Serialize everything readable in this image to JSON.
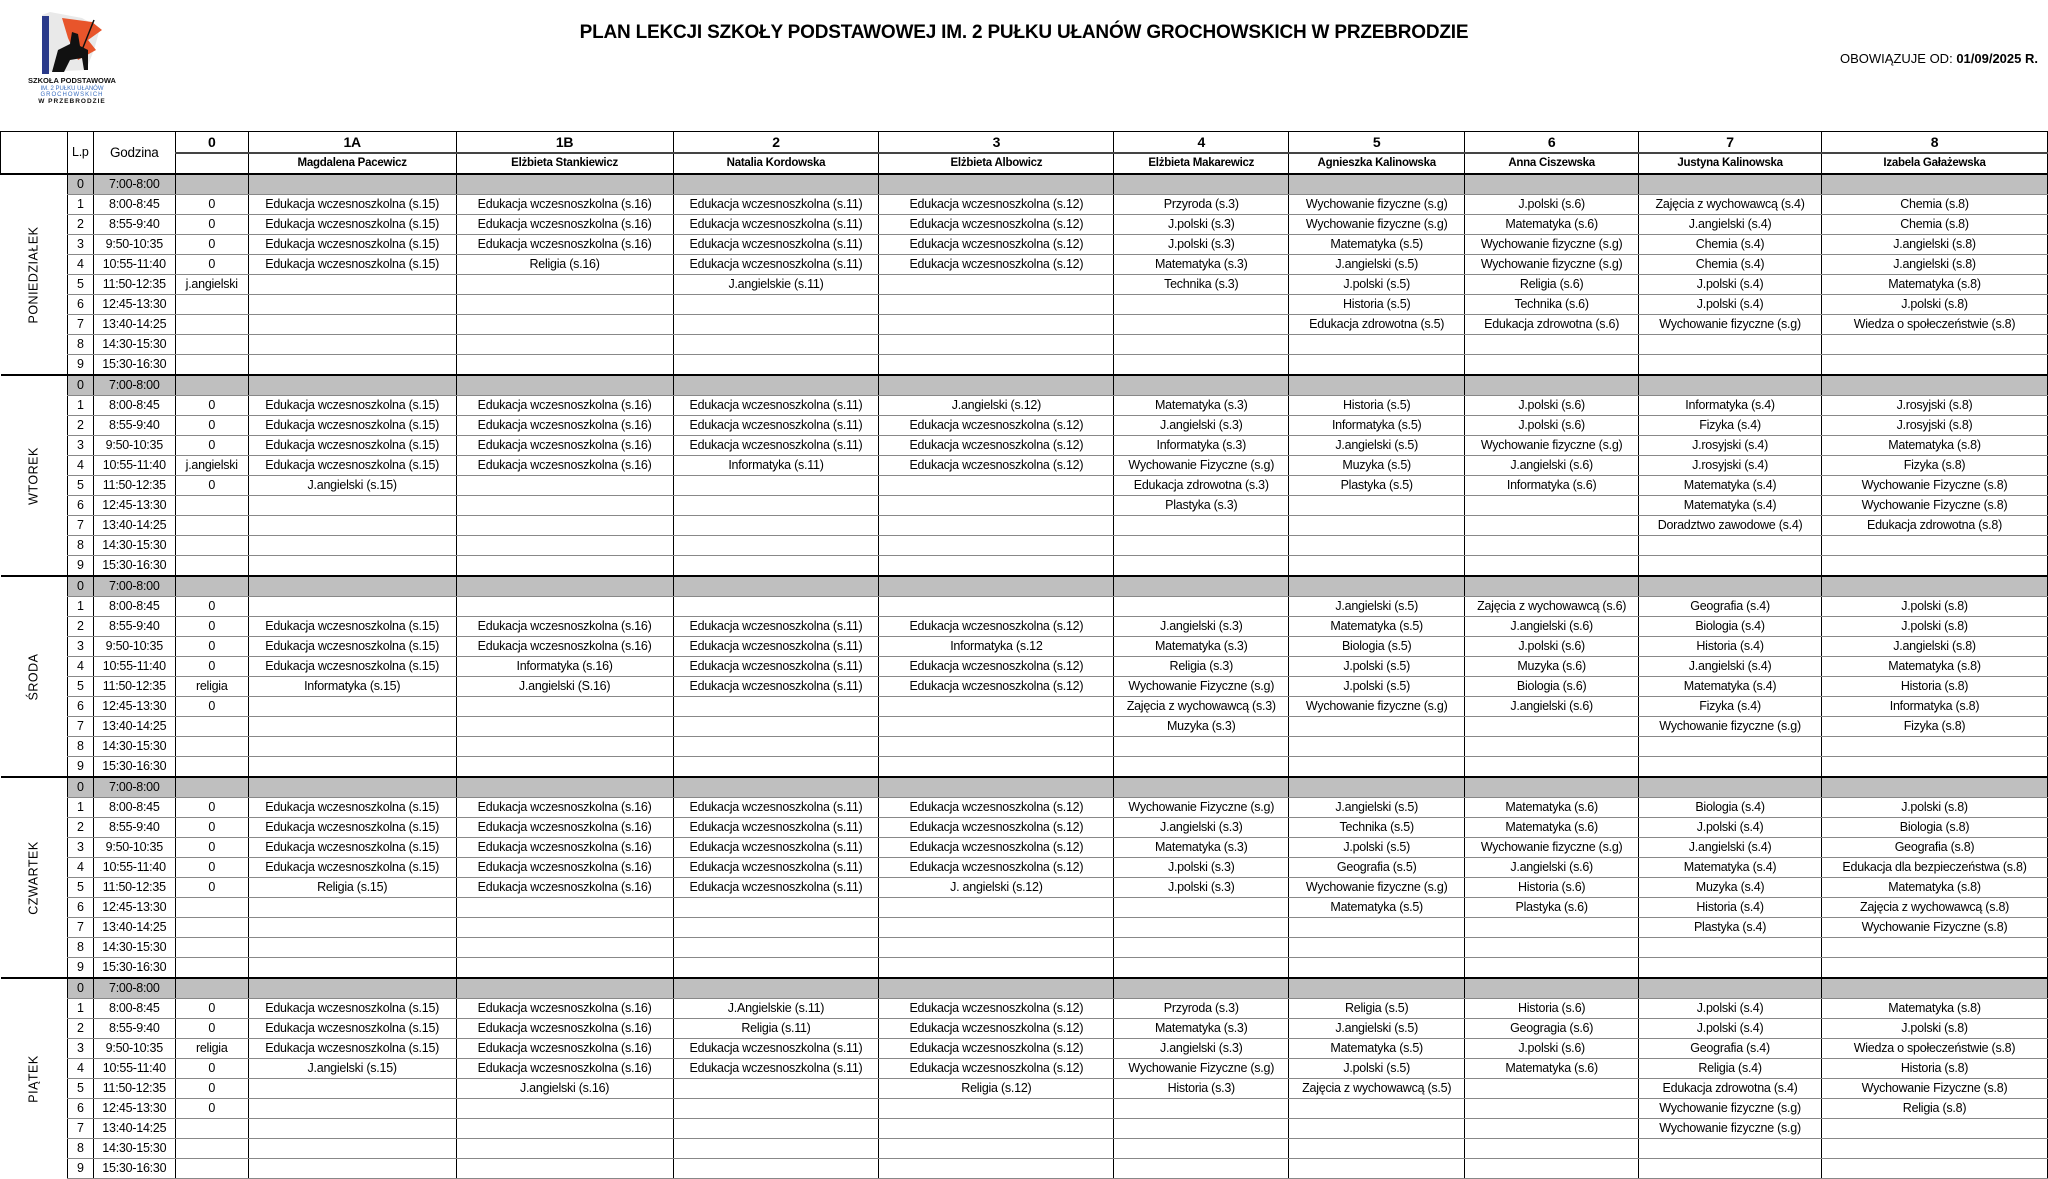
{
  "logo": {
    "text": [
      "SZKOŁA PODSTAWOWA",
      "IM. 2 PUŁKU UŁANÓW",
      "GROCHOWSKICH",
      "W PRZEBRODZIE"
    ]
  },
  "title": "PLAN LEKCJI SZKOŁY PODSTAWOWEJ IM. 2 PUŁKU UŁANÓW GROCHOWSKICH W PRZEBRODZIE",
  "valid_label": "OBOWIĄZUJE OD:",
  "valid_date": "01/09/2025 R.",
  "header": {
    "lp": "L.p",
    "hour": "Godzina",
    "classes": [
      "0",
      "1A",
      "1B",
      "2",
      "3",
      "4",
      "5",
      "6",
      "7",
      "8"
    ],
    "teachers": [
      "",
      "Magdalena Pacewicz",
      "Elżbieta Stankiewicz",
      "Natalia Kordowska",
      "Elżbieta Albowicz",
      "Elżbieta Makarewicz",
      "Agnieszka Kalinowska",
      "Anna Ciszewska",
      "Justyna Kalinowska",
      "Izabela Gałażewska"
    ]
  },
  "hours": [
    "7:00-8:00",
    "8:00-8:45",
    "8:55-9:40",
    "9:50-10:35",
    "10:55-11:40",
    "11:50-12:35",
    "12:45-13:30",
    "13:40-14:25",
    "14:30-15:30",
    "15:30-16:30"
  ],
  "days": [
    {
      "name": "PONIEDZIAŁEK",
      "rows": [
        [
          "",
          "",
          "",
          "",
          "",
          "",
          "",
          "",
          "",
          ""
        ],
        [
          "0",
          "Edukacja wczesnoszkolna (s.15)",
          "Edukacja wczesnoszkolna (s.16)",
          "Edukacja wczesnoszkolna (s.11)",
          "Edukacja wczesnoszkolna (s.12)",
          "Przyroda (s.3)",
          "Wychowanie fizyczne (s.g)",
          "J.polski (s.6)",
          "Zajęcia z wychowawcą (s.4)",
          "Chemia (s.8)"
        ],
        [
          "0",
          "Edukacja wczesnoszkolna (s.15)",
          "Edukacja wczesnoszkolna (s.16)",
          "Edukacja wczesnoszkolna (s.11)",
          "Edukacja wczesnoszkolna (s.12)",
          "J.polski (s.3)",
          "Wychowanie fizyczne (s.g)",
          "Matematyka (s.6)",
          "J.angielski (s.4)",
          "Chemia (s.8)"
        ],
        [
          "0",
          "Edukacja wczesnoszkolna (s.15)",
          "Edukacja wczesnoszkolna (s.16)",
          "Edukacja wczesnoszkolna (s.11)",
          "Edukacja wczesnoszkolna (s.12)",
          "J.polski (s.3)",
          "Matematyka (s.5)",
          "Wychowanie fizyczne (s.g)",
          "Chemia (s.4)",
          "J.angielski (s.8)"
        ],
        [
          "0",
          "Edukacja wczesnoszkolna (s.15)",
          "Religia (s.16)",
          "Edukacja wczesnoszkolna (s.11)",
          "Edukacja wczesnoszkolna (s.12)",
          "Matematyka (s.3)",
          "J.angielski (s.5)",
          "Wychowanie fizyczne (s.g)",
          "Chemia (s.4)",
          "J.angielski (s.8)"
        ],
        [
          "j.angielski",
          "",
          "",
          "J.angielskie (s.11)",
          "",
          "Technika (s.3)",
          "J.polski (s.5)",
          "Religia (s.6)",
          "J.polski (s.4)",
          "Matematyka (s.8)"
        ],
        [
          "",
          "",
          "",
          "",
          "",
          "",
          "Historia (s.5)",
          "Technika (s.6)",
          "J.polski (s.4)",
          "J.polski (s.8)"
        ],
        [
          "",
          "",
          "",
          "",
          "",
          "",
          "Edukacja zdrowotna (s.5)",
          "Edukacja zdrowotna (s.6)",
          "Wychowanie fizyczne (s.g)",
          "Wiedza o społeczeństwie (s.8)"
        ],
        [
          "",
          "",
          "",
          "",
          "",
          "",
          "",
          "",
          "",
          ""
        ],
        [
          "",
          "",
          "",
          "",
          "",
          "",
          "",
          "",
          "",
          ""
        ]
      ]
    },
    {
      "name": "WTOREK",
      "rows": [
        [
          "",
          "",
          "",
          "",
          "",
          "",
          "",
          "",
          "",
          ""
        ],
        [
          "0",
          "Edukacja wczesnoszkolna (s.15)",
          "Edukacja wczesnoszkolna (s.16)",
          "Edukacja wczesnoszkolna (s.11)",
          "J.angielski (s.12)",
          "Matematyka (s.3)",
          "Historia (s.5)",
          "J.polski (s.6)",
          "Informatyka (s.4)",
          "J.rosyjski (s.8)"
        ],
        [
          "0",
          "Edukacja wczesnoszkolna (s.15)",
          "Edukacja wczesnoszkolna (s.16)",
          "Edukacja wczesnoszkolna (s.11)",
          "Edukacja wczesnoszkolna (s.12)",
          "J.angielski (s.3)",
          "Informatyka (s.5)",
          "J.polski (s.6)",
          "Fizyka (s.4)",
          "J.rosyjski (s.8)"
        ],
        [
          "0",
          "Edukacja wczesnoszkolna (s.15)",
          "Edukacja wczesnoszkolna (s.16)",
          "Edukacja wczesnoszkolna (s.11)",
          "Edukacja wczesnoszkolna (s.12)",
          "Informatyka (s.3)",
          "J.angielski (s.5)",
          "Wychowanie fizyczne (s.g)",
          "J.rosyjski (s.4)",
          "Matematyka (s.8)"
        ],
        [
          "j.angielski",
          "Edukacja wczesnoszkolna (s.15)",
          "Edukacja wczesnoszkolna (s.16)",
          "Informatyka (s.11)",
          "Edukacja wczesnoszkolna (s.12)",
          "Wychowanie Fizyczne (s.g)",
          "Muzyka (s.5)",
          "J.angielski (s.6)",
          "J.rosyjski (s.4)",
          "Fizyka (s.8)"
        ],
        [
          "0",
          "J.angielski (s.15)",
          "",
          "",
          "",
          "Edukacja zdrowotna (s.3)",
          "Plastyka (s.5)",
          "Informatyka (s.6)",
          "Matematyka (s.4)",
          "Wychowanie Fizyczne (s.8)"
        ],
        [
          "",
          "",
          "",
          "",
          "",
          "Plastyka (s.3)",
          "",
          "",
          "Matematyka (s.4)",
          "Wychowanie Fizyczne (s.8)"
        ],
        [
          "",
          "",
          "",
          "",
          "",
          "",
          "",
          "",
          "Doradztwo zawodowe (s.4)",
          "Edukacja zdrowotna (s.8)"
        ],
        [
          "",
          "",
          "",
          "",
          "",
          "",
          "",
          "",
          "",
          ""
        ],
        [
          "",
          "",
          "",
          "",
          "",
          "",
          "",
          "",
          "",
          ""
        ]
      ]
    },
    {
      "name": "ŚRODA",
      "rows": [
        [
          "",
          "",
          "",
          "",
          "",
          "",
          "",
          "",
          "",
          ""
        ],
        [
          "0",
          "",
          "",
          "",
          "",
          "",
          "J.angielski (s.5)",
          "Zajęcia z wychowawcą (s.6)",
          "Geografia (s.4)",
          "J.polski (s.8)"
        ],
        [
          "0",
          "Edukacja wczesnoszkolna (s.15)",
          "Edukacja wczesnoszkolna (s.16)",
          "Edukacja wczesnoszkolna (s.11)",
          "Edukacja wczesnoszkolna (s.12)",
          "J.angielski (s.3)",
          "Matematyka (s.5)",
          "J.angielski (s.6)",
          "Biologia (s.4)",
          "J.polski (s.8)"
        ],
        [
          "0",
          "Edukacja wczesnoszkolna (s.15)",
          "Edukacja wczesnoszkolna (s.16)",
          "Edukacja wczesnoszkolna (s.11)",
          "Informatyka (s.12",
          "Matematyka (s.3)",
          "Biologia (s.5)",
          "J.polski (s.6)",
          "Historia (s.4)",
          "J.angielski (s.8)"
        ],
        [
          "0",
          "Edukacja wczesnoszkolna (s.15)",
          "Informatyka (s.16)",
          "Edukacja wczesnoszkolna (s.11)",
          "Edukacja wczesnoszkolna (s.12)",
          "Religia (s.3)",
          "J.polski (s.5)",
          "Muzyka (s.6)",
          "J.angielski (s.4)",
          "Matematyka (s.8)"
        ],
        [
          "religia",
          "Informatyka (s.15)",
          "J.angielski (S.16)",
          "Edukacja wczesnoszkolna (s.11)",
          "Edukacja wczesnoszkolna (s.12)",
          "Wychowanie Fizyczne (s.g)",
          "J.polski (s.5)",
          "Biologia (s.6)",
          "Matematyka (s.4)",
          "Historia (s.8)"
        ],
        [
          "0",
          "",
          "",
          "",
          "",
          "Zajęcia z wychowawcą (s.3)",
          "Wychowanie fizyczne (s.g)",
          "J.angielski (s.6)",
          "Fizyka (s.4)",
          "Informatyka (s.8)"
        ],
        [
          "",
          "",
          "",
          "",
          "",
          "Muzyka (s.3)",
          "",
          "",
          "Wychowanie fizyczne (s.g)",
          "Fizyka (s.8)"
        ],
        [
          "",
          "",
          "",
          "",
          "",
          "",
          "",
          "",
          "",
          ""
        ],
        [
          "",
          "",
          "",
          "",
          "",
          "",
          "",
          "",
          "",
          ""
        ]
      ]
    },
    {
      "name": "CZWARTEK",
      "rows": [
        [
          "",
          "",
          "",
          "",
          "",
          "",
          "",
          "",
          "",
          ""
        ],
        [
          "0",
          "Edukacja wczesnoszkolna (s.15)",
          "Edukacja wczesnoszkolna (s.16)",
          "Edukacja wczesnoszkolna (s.11)",
          "Edukacja wczesnoszkolna (s.12)",
          "Wychowanie Fizyczne (s.g)",
          "J.angielski (s.5)",
          "Matematyka (s.6)",
          "Biologia (s.4)",
          "J.polski (s.8)"
        ],
        [
          "0",
          "Edukacja wczesnoszkolna (s.15)",
          "Edukacja wczesnoszkolna (s.16)",
          "Edukacja wczesnoszkolna (s.11)",
          "Edukacja wczesnoszkolna (s.12)",
          "J.angielski (s.3)",
          "Technika (s.5)",
          "Matematyka (s.6)",
          "J.polski (s.4)",
          "Biologia (s.8)"
        ],
        [
          "0",
          "Edukacja wczesnoszkolna (s.15)",
          "Edukacja wczesnoszkolna (s.16)",
          "Edukacja wczesnoszkolna (s.11)",
          "Edukacja wczesnoszkolna (s.12)",
          "Matematyka (s.3)",
          "J.polski (s.5)",
          "Wychowanie fizyczne (s.g)",
          "J.angielski (s.4)",
          "Geografia (s.8)"
        ],
        [
          "0",
          "Edukacja wczesnoszkolna (s.15)",
          "Edukacja wczesnoszkolna (s.16)",
          "Edukacja wczesnoszkolna (s.11)",
          "Edukacja wczesnoszkolna (s.12)",
          "J.polski (s.3)",
          "Geografia (s.5)",
          "J.angielski (s.6)",
          "Matematyka (s.4)",
          "Edukacja dla bezpieczeństwa (s.8)"
        ],
        [
          "0",
          "Religia (s.15)",
          "Edukacja wczesnoszkolna (s.16)",
          "Edukacja wczesnoszkolna (s.11)",
          "J. angielski (s.12)",
          "J.polski (s.3)",
          "Wychowanie fizyczne (s.g)",
          "Historia (s.6)",
          "Muzyka (s.4)",
          "Matematyka (s.8)"
        ],
        [
          "",
          "",
          "",
          "",
          "",
          "",
          "Matematyka (s.5)",
          "Plastyka (s.6)",
          "Historia (s.4)",
          "Zajęcia z wychowawcą (s.8)"
        ],
        [
          "",
          "",
          "",
          "",
          "",
          "",
          "",
          "",
          "Plastyka (s.4)",
          "Wychowanie Fizyczne (s.8)"
        ],
        [
          "",
          "",
          "",
          "",
          "",
          "",
          "",
          "",
          "",
          ""
        ],
        [
          "",
          "",
          "",
          "",
          "",
          "",
          "",
          "",
          "",
          ""
        ]
      ]
    },
    {
      "name": "PIĄTEK",
      "rows": [
        [
          "",
          "",
          "",
          "",
          "",
          "",
          "",
          "",
          "",
          ""
        ],
        [
          "0",
          "Edukacja wczesnoszkolna (s.15)",
          "Edukacja wczesnoszkolna (s.16)",
          "J.Angielskie (s.11)",
          "Edukacja wczesnoszkolna (s.12)",
          "Przyroda (s.3)",
          "Religia (s.5)",
          "Historia (s.6)",
          "J.polski (s.4)",
          "Matematyka (s.8)"
        ],
        [
          "0",
          "Edukacja wczesnoszkolna (s.15)",
          "Edukacja wczesnoszkolna (s.16)",
          "Religia (s.11)",
          "Edukacja wczesnoszkolna (s.12)",
          "Matematyka (s.3)",
          "J.angielski (s.5)",
          "Geogragia (s.6)",
          "J.polski (s.4)",
          "J.polski (s.8)"
        ],
        [
          "religia",
          "Edukacja wczesnoszkolna (s.15)",
          "Edukacja wczesnoszkolna (s.16)",
          "Edukacja wczesnoszkolna (s.11)",
          "Edukacja wczesnoszkolna (s.12)",
          "J.angielski (s.3)",
          "Matematyka (s.5)",
          "J.polski (s.6)",
          "Geografia (s.4)",
          "Wiedza o społeczeństwie (s.8)"
        ],
        [
          "0",
          "J.angielski (s.15)",
          "Edukacja wczesnoszkolna (s.16)",
          "Edukacja wczesnoszkolna (s.11)",
          "Edukacja wczesnoszkolna (s.12)",
          "Wychowanie Fizyczne (s.g)",
          "J.polski (s.5)",
          "Matematyka (s.6)",
          "Religia (s.4)",
          "Historia (s.8)"
        ],
        [
          "0",
          "",
          "J.angielski (s.16)",
          "",
          "Religia (s.12)",
          "Historia (s.3)",
          "Zajęcia z wychowawcą (s.5)",
          "",
          "Edukacja zdrowotna (s.4)",
          "Wychowanie Fizyczne (s.8)"
        ],
        [
          "0",
          "",
          "",
          "",
          "",
          "",
          "",
          "",
          "Wychowanie fizyczne (s.g)",
          "Religia (s.8)"
        ],
        [
          "",
          "",
          "",
          "",
          "",
          "",
          "",
          "",
          "Wychowanie fizyczne (s.g)",
          ""
        ],
        [
          "",
          "",
          "",
          "",
          "",
          "",
          "",
          "",
          "",
          ""
        ],
        [
          "",
          "",
          "",
          "",
          "",
          "",
          "",
          "",
          "",
          ""
        ]
      ]
    }
  ]
}
